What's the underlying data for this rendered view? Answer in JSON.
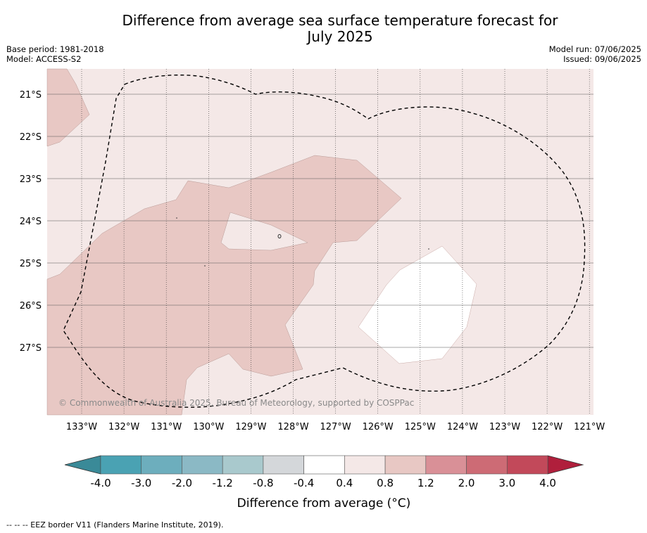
{
  "title_line1": "Difference from average sea surface temperature forecast for",
  "title_line2": "July 2025",
  "base_period": "Base period: 1981-2018",
  "model": "Model: ACCESS-S2",
  "model_run": "Model run: 07/06/2025",
  "issued": "Issued: 09/06/2025",
  "copyright": "© Commonwealth of Australia 2025, Bureau of Meteorology, supported by COSPPac",
  "lat_labels": [
    "21°S",
    "22°S",
    "23°S",
    "24°S",
    "25°S",
    "26°S",
    "27°S"
  ],
  "lon_labels": [
    "133°W",
    "132°W",
    "131°W",
    "130°W",
    "129°W",
    "128°W",
    "127°W",
    "126°W",
    "125°W",
    "124°W",
    "123°W",
    "122°W",
    "121°W"
  ],
  "colorbar": {
    "ticks": [
      "-4.0",
      "-3.0",
      "-2.0",
      "-1.2",
      "-0.8",
      "-0.4",
      "0.4",
      "0.8",
      "1.2",
      "2.0",
      "3.0",
      "4.0"
    ],
    "colors": [
      "#4aa2b3",
      "#6daebd",
      "#8bb9c5",
      "#a9c9cd",
      "#d4d7da",
      "#ffffff",
      "#f4e8e7",
      "#e8c8c4",
      "#d99097",
      "#cd6b75",
      "#c2495a"
    ],
    "under_color": "#3a8a98",
    "over_color": "#b01f3c",
    "label": "Difference from average (°C)"
  },
  "footer": "--  --  -- EEZ border V11 (Flanders Marine Institute, 2019)."
}
